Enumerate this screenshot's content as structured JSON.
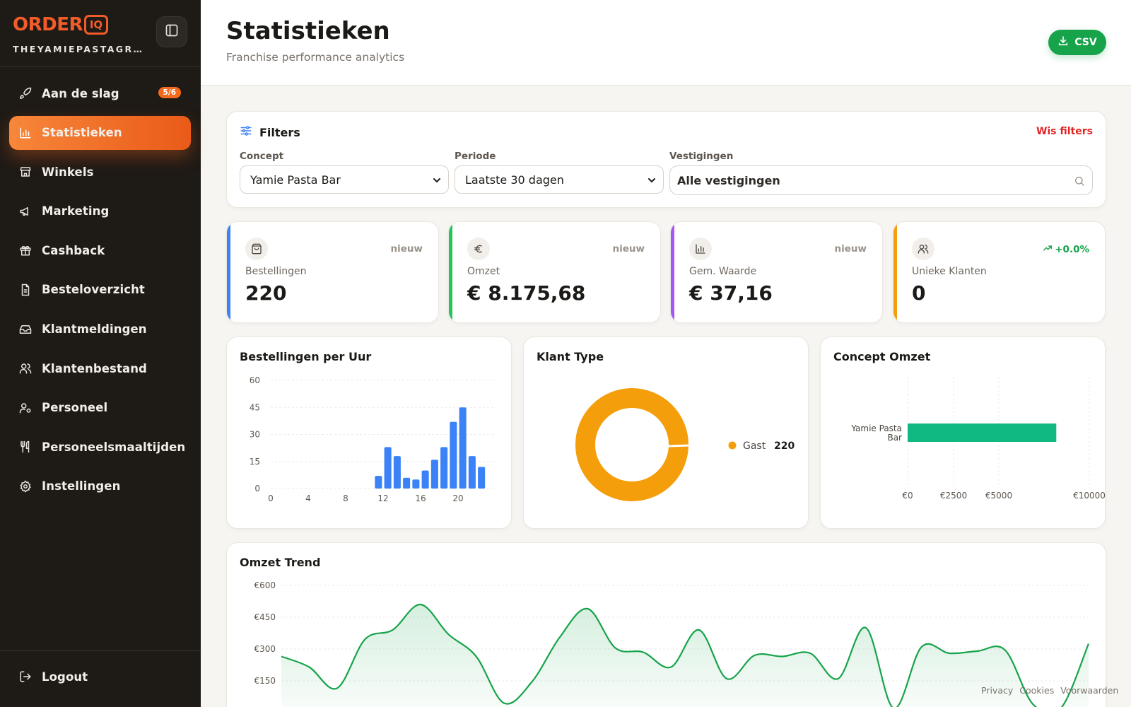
{
  "sidebar": {
    "logo_main": "ORDER",
    "logo_accent": "IQ",
    "org_name": "THEYAMIEPASTAGROUP",
    "items": [
      {
        "label": "Aan de slag",
        "icon": "rocket-icon",
        "badge": "5/6",
        "active": false
      },
      {
        "label": "Statistieken",
        "icon": "bar-chart-icon",
        "active": true
      },
      {
        "label": "Winkels",
        "icon": "store-icon",
        "active": false
      },
      {
        "label": "Marketing",
        "icon": "megaphone-icon",
        "active": false
      },
      {
        "label": "Cashback",
        "icon": "gift-icon",
        "active": false
      },
      {
        "label": "Besteloverzicht",
        "icon": "document-icon",
        "active": false
      },
      {
        "label": "Klantmeldingen",
        "icon": "inbox-icon",
        "active": false
      },
      {
        "label": "Klantenbestand",
        "icon": "users-icon",
        "active": false
      },
      {
        "label": "Personeel",
        "icon": "user-cog-icon",
        "active": false
      },
      {
        "label": "Personeelsmaaltijden",
        "icon": "utensils-icon",
        "active": false
      },
      {
        "label": "Instellingen",
        "icon": "gear-icon",
        "active": false
      }
    ],
    "logout_label": "Logout"
  },
  "header": {
    "title": "Statistieken",
    "subtitle": "Franchise performance analytics",
    "csv_label": "CSV"
  },
  "filters": {
    "title": "Filters",
    "clear_label": "Wis filters",
    "concept_label": "Concept",
    "concept_value": "Yamie Pasta Bar",
    "period_label": "Periode",
    "period_value": "Laatste 30 dagen",
    "locations_label": "Vestigingen",
    "locations_value": "Alle vestigingen"
  },
  "kpis": [
    {
      "label": "Bestellingen",
      "value": "220",
      "tag": "nieuw",
      "accent": "#3b82f6",
      "icon": "shopping-bag-icon"
    },
    {
      "label": "Omzet",
      "value": "€ 8.175,68",
      "tag": "nieuw",
      "accent": "#22c55e",
      "icon": "euro-icon"
    },
    {
      "label": "Gem. Waarde",
      "value": "€ 37,16",
      "tag": "nieuw",
      "accent": "#a855f7",
      "icon": "bar-chart-icon"
    },
    {
      "label": "Unieke Klanten",
      "value": "0",
      "tag": "+0.0%",
      "accent": "#f59e0b",
      "icon": "users-icon"
    }
  ],
  "colors": {
    "brand": "#f25c2a",
    "positive": "#16a34a",
    "danger": "#e02424",
    "bar": "#3b82f6",
    "donut": "#f59e0b",
    "hbar": "#10b981",
    "line": "#16a34a"
  },
  "chart_data": [
    {
      "type": "bar",
      "title": "Bestellingen per Uur",
      "x": [
        0,
        1,
        2,
        3,
        4,
        5,
        6,
        7,
        8,
        9,
        10,
        11,
        12,
        13,
        14,
        15,
        16,
        17,
        18,
        19,
        20,
        21,
        22,
        23
      ],
      "values": [
        0,
        0,
        0,
        0,
        0,
        0,
        0,
        0,
        0,
        0,
        0,
        7,
        23,
        18,
        6,
        5,
        10,
        16,
        23,
        37,
        45,
        18,
        12,
        0
      ],
      "xticks": [
        0,
        4,
        8,
        12,
        16,
        20
      ],
      "yticks": [
        0,
        15,
        30,
        45,
        60
      ],
      "ylim": [
        0,
        60
      ],
      "grid": true
    },
    {
      "type": "pie",
      "title": "Klant Type",
      "labels": [
        "Gast"
      ],
      "values": [
        220
      ],
      "legend": "right"
    },
    {
      "type": "bar",
      "orientation": "horizontal",
      "title": "Concept Omzet",
      "categories": [
        "Yamie Pasta Bar"
      ],
      "values": [
        8175.68
      ],
      "xticks": [
        "€0",
        "€2500",
        "€5000",
        "€10000"
      ],
      "xtick_values": [
        0,
        2500,
        5000,
        10000
      ],
      "xlim": [
        0,
        10000
      ],
      "grid": true
    },
    {
      "type": "area",
      "title": "Omzet Trend",
      "x": [
        1,
        2,
        3,
        4,
        5,
        6,
        7,
        8,
        9,
        10,
        11,
        12,
        13,
        14,
        15,
        16,
        17,
        18,
        19,
        20,
        21,
        22,
        23,
        24,
        25,
        26,
        27,
        28,
        29,
        30
      ],
      "values": [
        265,
        215,
        115,
        345,
        390,
        510,
        370,
        265,
        45,
        145,
        355,
        490,
        305,
        285,
        215,
        390,
        160,
        270,
        265,
        280,
        160,
        400,
        20,
        310,
        280,
        290,
        295,
        40,
        20,
        325
      ],
      "yticks": [
        "€150",
        "€300",
        "€450",
        "€600"
      ],
      "ytick_values": [
        150,
        300,
        450,
        600
      ],
      "ylim": [
        0,
        600
      ],
      "grid": true
    }
  ],
  "footer": {
    "links": [
      "Privacy",
      "Cookies",
      "Voorwaarden"
    ]
  }
}
